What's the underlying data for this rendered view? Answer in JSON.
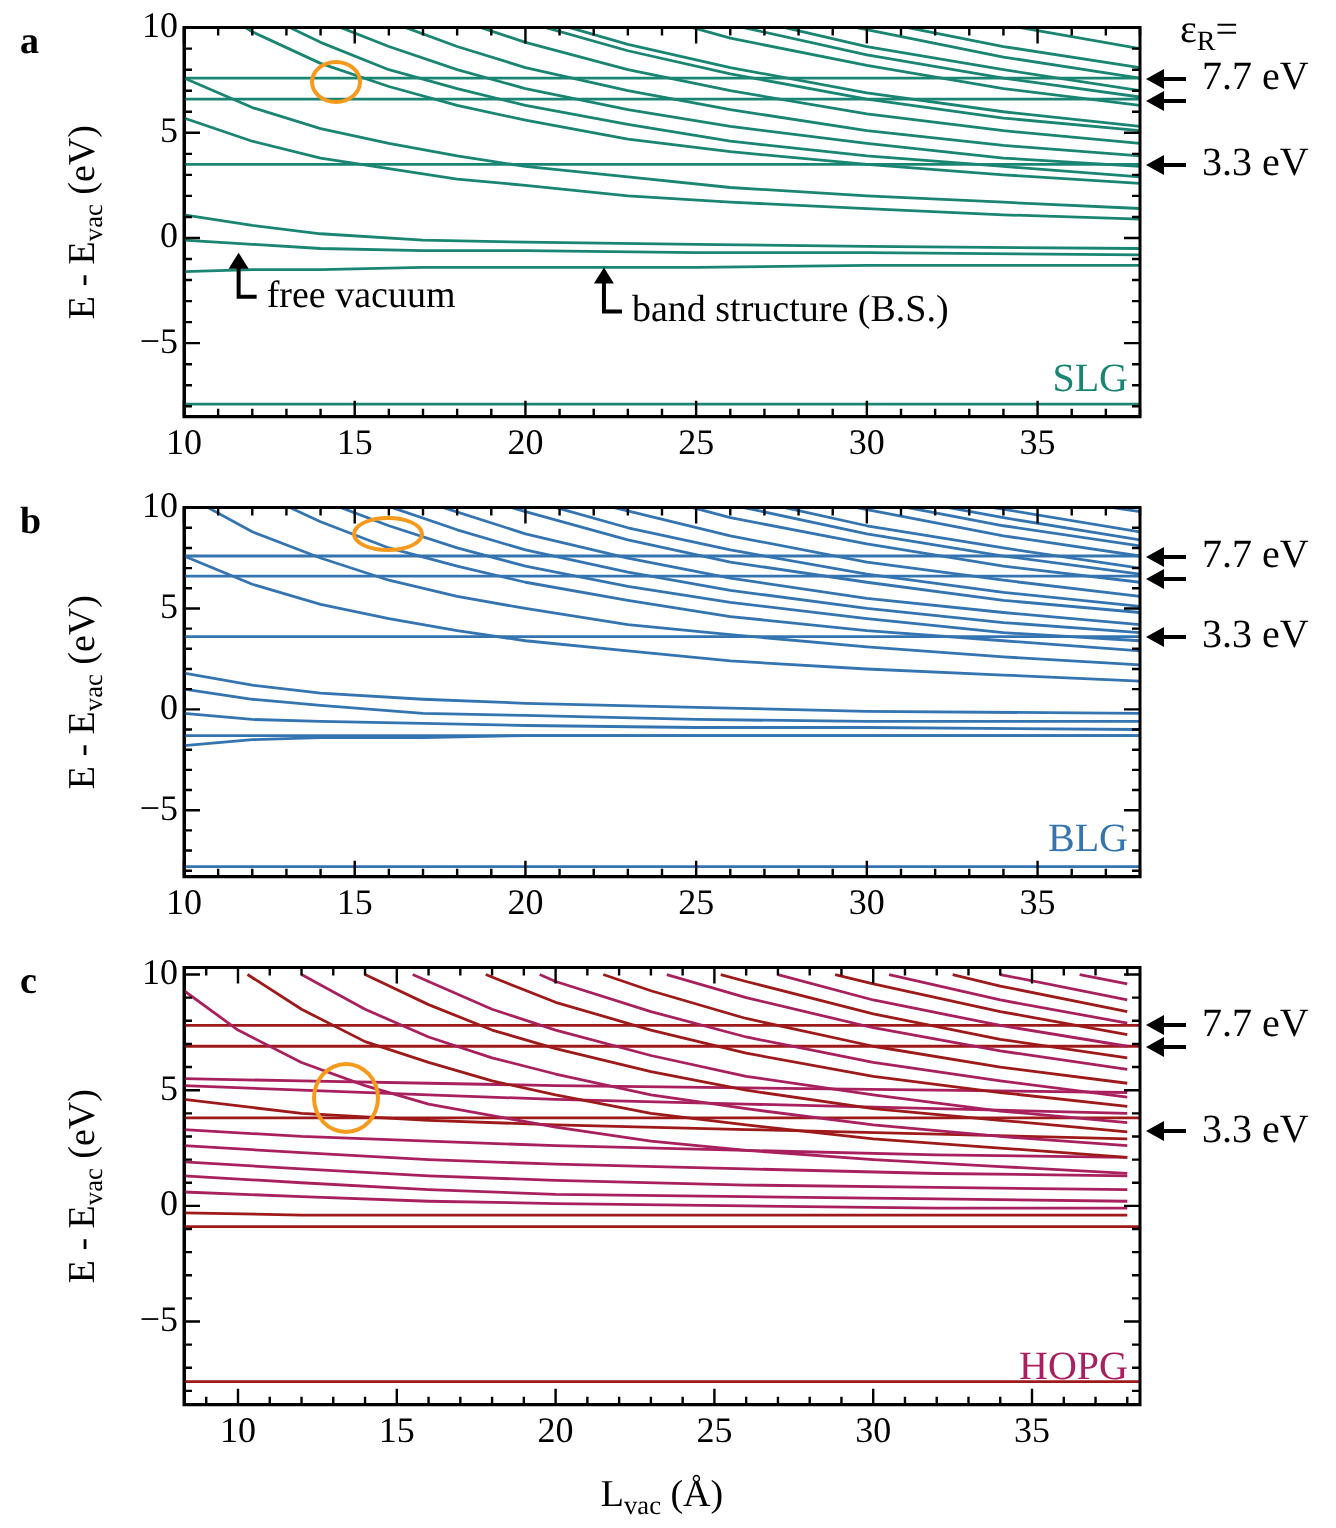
{
  "chart_data": [
    {
      "type": "line",
      "ylabel": "E - E$_{vac}$ (eV)",
      "xlim": [
        10,
        38
      ],
      "ylim": [
        -8.5,
        10
      ],
      "xticks": [
        10,
        {
          "value": 11,
          "label": null
        },
        {
          "value": 12,
          "label": null
        },
        {
          "value": 13,
          "label": null
        },
        {
          "value": 14,
          "label": null
        },
        15,
        {
          "value": 16,
          "label": null
        },
        {
          "value": 17,
          "label": null
        },
        {
          "value": 18,
          "label": null
        },
        {
          "value": 19,
          "label": null
        },
        20,
        {
          "value": 21,
          "label": null
        },
        {
          "value": 22,
          "label": null
        },
        {
          "value": 23,
          "label": null
        },
        {
          "value": 24,
          "label": null
        },
        25,
        {
          "value": 26,
          "label": null
        },
        {
          "value": 27,
          "label": null
        },
        {
          "value": 28,
          "label": null
        },
        {
          "value": 29,
          "label": null
        },
        30,
        {
          "value": 31,
          "label": null
        },
        {
          "value": 32,
          "label": null
        },
        {
          "value": 33,
          "label": null
        },
        {
          "value": 34,
          "label": null
        },
        35,
        {
          "value": 36,
          "label": null
        },
        {
          "value": 37,
          "label": null
        },
        {
          "value": 38,
          "label": null
        }
      ],
      "yticks": [
        {
          "value": -8,
          "label": null
        },
        {
          "value": -7,
          "label": null
        },
        {
          "value": -6,
          "label": null
        },
        -5,
        {
          "value": -4,
          "label": null
        },
        {
          "value": -3,
          "label": null
        },
        {
          "value": -2,
          "label": null
        },
        {
          "value": -1,
          "label": null
        },
        0,
        {
          "value": 1,
          "label": null
        },
        {
          "value": 2,
          "label": null
        },
        {
          "value": 3,
          "label": null
        },
        {
          "value": 4,
          "label": null
        },
        5,
        {
          "value": 6,
          "label": null
        },
        {
          "value": 7,
          "label": null
        },
        {
          "value": 8,
          "label": null
        },
        {
          "value": 9,
          "label": null
        },
        10
      ],
      "grid": false,
      "legend": false,
      "marker": "none",
      "line_style": "solid",
      "annotations": [
        "a",
        "ε$_{R}$=",
        "SLG",
        {
          "text": "7.7 eV",
          "x": 38,
          "y": 7.6
        },
        {
          "text": "3.3 eV",
          "x": 38,
          "y": 3.5
        },
        {
          "text": "free vacuum",
          "x": 11.6,
          "y": -0.7
        },
        {
          "text": "band structure (B.S.)",
          "x": 22.3,
          "y": -1.4
        }
      ],
      "series": [
        {
          "color": "#1a8573",
          "x": [
            10,
            38
          ],
          "values": [
            7.6,
            7.6
          ]
        },
        {
          "color": "#1a8573",
          "x": [
            10,
            38
          ],
          "values": [
            6.6,
            6.6
          ]
        },
        {
          "color": "#1a8573",
          "x": [
            10,
            38
          ],
          "values": [
            3.5,
            3.5
          ]
        },
        {
          "color": "#1a8573",
          "x": [
            10,
            38
          ],
          "values": [
            -7.9,
            -7.9
          ]
        },
        {
          "color": "#1a8573",
          "x": [
            10,
            12,
            14,
            16,
            18,
            20,
            23,
            26,
            30,
            34,
            38
          ],
          "values": [
            7.6,
            6.2,
            5.2,
            4.5,
            3.9,
            3.4,
            2.9,
            2.4,
            2.0,
            1.7,
            1.4
          ]
        },
        {
          "color": "#1a8573",
          "x": [
            10,
            12,
            14,
            16,
            18,
            20,
            23,
            26,
            30,
            34,
            38
          ],
          "values": [
            5.7,
            4.6,
            3.8,
            3.3,
            2.8,
            2.5,
            2.0,
            1.7,
            1.4,
            1.1,
            0.9
          ]
        },
        {
          "color": "#1a8573",
          "x": [
            11.8,
            12,
            14,
            16,
            18,
            20,
            23,
            26,
            30,
            34,
            38
          ],
          "values": [
            10,
            9.8,
            8.3,
            7.2,
            6.3,
            5.6,
            4.7,
            4.1,
            3.5,
            3.0,
            2.6
          ]
        },
        {
          "color": "#1a8573",
          "x": [
            13.1,
            14,
            16,
            18,
            20,
            23,
            26,
            30,
            34,
            38
          ],
          "values": [
            10,
            9.3,
            8.0,
            7.1,
            6.3,
            5.4,
            4.6,
            3.9,
            3.4,
            2.9
          ]
        },
        {
          "color": "#1a8573",
          "x": [
            14.6,
            16,
            18,
            20,
            23,
            26,
            30,
            34,
            38
          ],
          "values": [
            10,
            9.1,
            8.0,
            7.1,
            6.1,
            5.3,
            4.5,
            3.8,
            3.4
          ]
        },
        {
          "color": "#1a8573",
          "x": [
            16.5,
            18,
            20,
            23,
            26,
            30,
            34,
            38
          ],
          "values": [
            10,
            9.1,
            8.1,
            7.0,
            6.1,
            5.1,
            4.4,
            3.9
          ]
        },
        {
          "color": "#1a8573",
          "x": [
            18.7,
            20,
            23,
            26,
            30,
            34,
            38
          ],
          "values": [
            10,
            9.3,
            8.0,
            7.0,
            5.9,
            5.1,
            4.5
          ]
        },
        {
          "color": "#1a8573",
          "x": [
            20.6,
            23,
            26,
            30,
            34,
            38
          ],
          "values": [
            10,
            8.9,
            7.8,
            6.6,
            5.7,
            5.1
          ]
        },
        {
          "color": "#1a8573",
          "x": [
            21.3,
            23,
            26,
            30,
            34,
            38
          ],
          "values": [
            10,
            9.2,
            8.1,
            6.9,
            6.0,
            5.3
          ]
        },
        {
          "color": "#1a8573",
          "x": [
            24.9,
            26,
            30,
            34,
            38
          ],
          "values": [
            10,
            9.5,
            8.2,
            7.1,
            6.3
          ]
        },
        {
          "color": "#1a8573",
          "x": [
            26.4,
            30,
            34,
            38
          ],
          "values": [
            10,
            8.7,
            7.6,
            6.7
          ]
        },
        {
          "color": "#1a8573",
          "x": [
            27.6,
            30,
            34,
            38
          ],
          "values": [
            10,
            9.1,
            8.0,
            7.0
          ]
        },
        {
          "color": "#1a8573",
          "x": [
            29.7,
            34,
            38
          ],
          "values": [
            10,
            8.6,
            7.6
          ]
        },
        {
          "color": "#1a8573",
          "x": [
            31.2,
            34,
            38
          ],
          "values": [
            10,
            9.1,
            8.1
          ]
        },
        {
          "color": "#1a8573",
          "x": [
            34.5,
            38
          ],
          "values": [
            10,
            9.0
          ]
        },
        {
          "color": "#1a8573",
          "x": [
            10,
            12,
            14,
            17,
            20,
            25,
            30,
            38
          ],
          "values": [
            1.1,
            0.6,
            0.2,
            -0.1,
            -0.2,
            -0.3,
            -0.4,
            -0.5
          ]
        },
        {
          "color": "#1a8573",
          "x": [
            10,
            12,
            14,
            17,
            20,
            25,
            30,
            38
          ],
          "values": [
            -0.1,
            -0.3,
            -0.5,
            -0.6,
            -0.6,
            -0.7,
            -0.7,
            -0.8
          ]
        },
        {
          "color": "#1a8573",
          "x": [
            10,
            12,
            14,
            17,
            20,
            25,
            30,
            38
          ],
          "values": [
            -1.6,
            -1.5,
            -1.5,
            -1.4,
            -1.4,
            -1.4,
            -1.3,
            -1.3
          ]
        }
      ]
    },
    {
      "type": "line",
      "ylabel": "E - E$_{vac}$ (eV)",
      "xlim": [
        10,
        38
      ],
      "ylim": [
        -8.3,
        10
      ],
      "xticks": [
        10,
        {
          "value": 11,
          "label": null
        },
        {
          "value": 12,
          "label": null
        },
        {
          "value": 13,
          "label": null
        },
        {
          "value": 14,
          "label": null
        },
        15,
        {
          "value": 16,
          "label": null
        },
        {
          "value": 17,
          "label": null
        },
        {
          "value": 18,
          "label": null
        },
        {
          "value": 19,
          "label": null
        },
        20,
        {
          "value": 21,
          "label": null
        },
        {
          "value": 22,
          "label": null
        },
        {
          "value": 23,
          "label": null
        },
        {
          "value": 24,
          "label": null
        },
        25,
        {
          "value": 26,
          "label": null
        },
        {
          "value": 27,
          "label": null
        },
        {
          "value": 28,
          "label": null
        },
        {
          "value": 29,
          "label": null
        },
        30,
        {
          "value": 31,
          "label": null
        },
        {
          "value": 32,
          "label": null
        },
        {
          "value": 33,
          "label": null
        },
        {
          "value": 34,
          "label": null
        },
        35,
        {
          "value": 36,
          "label": null
        },
        {
          "value": 37,
          "label": null
        },
        {
          "value": 38,
          "label": null
        }
      ],
      "yticks": [
        {
          "value": -8,
          "label": null
        },
        {
          "value": -7,
          "label": null
        },
        {
          "value": -6,
          "label": null
        },
        -5,
        {
          "value": -4,
          "label": null
        },
        {
          "value": -3,
          "label": null
        },
        {
          "value": -2,
          "label": null
        },
        {
          "value": -1,
          "label": null
        },
        0,
        {
          "value": 1,
          "label": null
        },
        {
          "value": 2,
          "label": null
        },
        {
          "value": 3,
          "label": null
        },
        {
          "value": 4,
          "label": null
        },
        5,
        {
          "value": 6,
          "label": null
        },
        {
          "value": 7,
          "label": null
        },
        {
          "value": 8,
          "label": null
        },
        {
          "value": 9,
          "label": null
        },
        10
      ],
      "grid": false,
      "legend": false,
      "marker": "none",
      "line_style": "solid",
      "annotations": [
        "b",
        "BLG",
        {
          "text": "7.7 eV",
          "x": 38,
          "y": 7.6
        },
        {
          "text": "3.3 eV",
          "x": 38,
          "y": 3.6
        }
      ],
      "series": [
        {
          "color": "#3474b0",
          "x": [
            10,
            38
          ],
          "values": [
            7.6,
            7.6
          ]
        },
        {
          "color": "#3474b0",
          "x": [
            10,
            38
          ],
          "values": [
            6.6,
            6.6
          ]
        },
        {
          "color": "#3474b0",
          "x": [
            10,
            38
          ],
          "values": [
            3.6,
            3.6
          ]
        },
        {
          "color": "#3474b0",
          "x": [
            10,
            38
          ],
          "values": [
            -1.3,
            -1.3
          ]
        },
        {
          "color": "#3474b0",
          "x": [
            10,
            38
          ],
          "values": [
            -7.8,
            -7.8
          ]
        },
        {
          "color": "#3474b0",
          "x": [
            10,
            12,
            14,
            16,
            18,
            20,
            23,
            26,
            30,
            34,
            38
          ],
          "values": [
            7.6,
            6.2,
            5.2,
            4.5,
            3.9,
            3.4,
            2.9,
            2.4,
            2.0,
            1.7,
            1.4
          ]
        },
        {
          "color": "#3474b0",
          "x": [
            10.7,
            12,
            14,
            16,
            18,
            20,
            23,
            26,
            30,
            34,
            38
          ],
          "values": [
            10,
            8.8,
            7.5,
            6.4,
            5.6,
            5.0,
            4.2,
            3.7,
            3.1,
            2.6,
            2.2
          ]
        },
        {
          "color": "#3474b0",
          "x": [
            13.1,
            14,
            16,
            18,
            20,
            23,
            26,
            30,
            34,
            38
          ],
          "values": [
            10,
            9.3,
            8.0,
            7.1,
            6.3,
            5.4,
            4.6,
            3.9,
            3.4,
            2.9
          ]
        },
        {
          "color": "#3474b0",
          "x": [
            14.6,
            16,
            18,
            20,
            23,
            26,
            30,
            34,
            38
          ],
          "values": [
            10,
            9.1,
            8.0,
            7.1,
            6.1,
            5.3,
            4.5,
            3.8,
            3.4
          ]
        },
        {
          "color": "#3474b0",
          "x": [
            16.1,
            18,
            20,
            23,
            26,
            30,
            34,
            38
          ],
          "values": [
            10,
            8.9,
            7.9,
            6.8,
            5.9,
            5.0,
            4.3,
            3.8
          ]
        },
        {
          "color": "#3474b0",
          "x": [
            17.6,
            20,
            23,
            26,
            30,
            34,
            38
          ],
          "values": [
            10,
            8.7,
            7.5,
            6.5,
            5.5,
            4.8,
            4.2
          ]
        },
        {
          "color": "#3474b0",
          "x": [
            19.6,
            20,
            23,
            26,
            30,
            34,
            38
          ],
          "values": [
            10,
            9.8,
            8.4,
            7.3,
            6.3,
            5.4,
            4.8
          ]
        },
        {
          "color": "#3474b0",
          "x": [
            20.9,
            23,
            26,
            30,
            34,
            38
          ],
          "values": [
            10,
            9.0,
            7.9,
            6.7,
            5.8,
            5.1
          ]
        },
        {
          "color": "#3474b0",
          "x": [
            22.6,
            26,
            30,
            34,
            38
          ],
          "values": [
            10,
            8.6,
            7.3,
            6.4,
            5.6
          ]
        },
        {
          "color": "#3474b0",
          "x": [
            24.9,
            26,
            30,
            34,
            38
          ],
          "values": [
            10,
            9.5,
            8.2,
            7.1,
            6.3
          ]
        },
        {
          "color": "#3474b0",
          "x": [
            26.4,
            30,
            34,
            38
          ],
          "values": [
            10,
            8.7,
            7.6,
            6.7
          ]
        },
        {
          "color": "#3474b0",
          "x": [
            27.6,
            30,
            34,
            38
          ],
          "values": [
            10,
            9.1,
            8.0,
            7.0
          ]
        },
        {
          "color": "#3474b0",
          "x": [
            29.7,
            34,
            38
          ],
          "values": [
            10,
            8.6,
            7.6
          ]
        },
        {
          "color": "#3474b0",
          "x": [
            31.2,
            34,
            38
          ],
          "values": [
            10,
            9.1,
            8.1
          ]
        },
        {
          "color": "#3474b0",
          "x": [
            32.4,
            34,
            38
          ],
          "values": [
            10,
            9.5,
            8.4
          ]
        },
        {
          "color": "#3474b0",
          "x": [
            33.7,
            38
          ],
          "values": [
            10,
            8.8
          ]
        },
        {
          "color": "#3474b0",
          "x": [
            37.2,
            38
          ],
          "values": [
            10,
            9.8
          ]
        },
        {
          "color": "#3474b0",
          "x": [
            10,
            12,
            14,
            17,
            20,
            25,
            30,
            38
          ],
          "values": [
            1.8,
            1.2,
            0.8,
            0.5,
            0.3,
            0.1,
            -0.1,
            -0.2
          ]
        },
        {
          "color": "#3474b0",
          "x": [
            10,
            12,
            14,
            17,
            20,
            25,
            30,
            38
          ],
          "values": [
            1.0,
            0.5,
            0.2,
            -0.2,
            -0.3,
            -0.5,
            -0.6,
            -0.6
          ]
        },
        {
          "color": "#3474b0",
          "x": [
            10,
            12,
            14,
            17,
            20,
            25,
            30,
            38
          ],
          "values": [
            -0.2,
            -0.5,
            -0.6,
            -0.7,
            -0.8,
            -0.9,
            -0.9,
            -1.0
          ]
        },
        {
          "color": "#3474b0",
          "x": [
            10,
            12,
            14,
            17,
            20,
            25,
            30,
            38
          ],
          "values": [
            -1.8,
            -1.5,
            -1.4,
            -1.4,
            -1.3,
            -1.3,
            -1.3,
            -1.3
          ]
        }
      ]
    },
    {
      "type": "line",
      "xlabel": "L$_{vac}$ (Å)",
      "ylabel": "E - E$_{vac}$ (eV)",
      "xlim": [
        8.3,
        38.4
      ],
      "ylim": [
        -8.6,
        10.3
      ],
      "xticks": [
        {
          "value": 9,
          "label": null
        },
        10,
        {
          "value": 11,
          "label": null
        },
        {
          "value": 12,
          "label": null
        },
        {
          "value": 13,
          "label": null
        },
        {
          "value": 14,
          "label": null
        },
        15,
        {
          "value": 16,
          "label": null
        },
        {
          "value": 17,
          "label": null
        },
        {
          "value": 18,
          "label": null
        },
        {
          "value": 19,
          "label": null
        },
        20,
        {
          "value": 21,
          "label": null
        },
        {
          "value": 22,
          "label": null
        },
        {
          "value": 23,
          "label": null
        },
        {
          "value": 24,
          "label": null
        },
        25,
        {
          "value": 26,
          "label": null
        },
        {
          "value": 27,
          "label": null
        },
        {
          "value": 28,
          "label": null
        },
        {
          "value": 29,
          "label": null
        },
        30,
        {
          "value": 31,
          "label": null
        },
        {
          "value": 32,
          "label": null
        },
        {
          "value": 33,
          "label": null
        },
        {
          "value": 34,
          "label": null
        },
        35,
        {
          "value": 36,
          "label": null
        },
        {
          "value": 37,
          "label": null
        },
        {
          "value": 38,
          "label": null
        }
      ],
      "yticks": [
        {
          "value": -8,
          "label": null
        },
        {
          "value": -7,
          "label": null
        },
        {
          "value": -6,
          "label": null
        },
        -5,
        {
          "value": -4,
          "label": null
        },
        {
          "value": -3,
          "label": null
        },
        {
          "value": -2,
          "label": null
        },
        {
          "value": -1,
          "label": null
        },
        0,
        {
          "value": 1,
          "label": null
        },
        {
          "value": 2,
          "label": null
        },
        {
          "value": 3,
          "label": null
        },
        {
          "value": 4,
          "label": null
        },
        5,
        {
          "value": 6,
          "label": null
        },
        {
          "value": 7,
          "label": null
        },
        {
          "value": 8,
          "label": null
        },
        {
          "value": 9,
          "label": null
        },
        10
      ],
      "grid": false,
      "legend": false,
      "marker": "none",
      "line_style": "solid",
      "annotations": [
        "c",
        "HOPG",
        {
          "text": "7.7 eV",
          "x": 38.4,
          "y": 7.8
        },
        {
          "text": "3.3 eV",
          "x": 38,
          "y": 3.2
        }
      ],
      "series": [
        {
          "color": "#a8205e",
          "x": [
            8.3,
            10,
            12,
            14,
            16,
            18,
            20,
            23,
            26,
            30,
            34,
            38
          ],
          "values": [
            9.3,
            7.6,
            6.2,
            5.2,
            4.4,
            3.9,
            3.4,
            2.8,
            2.4,
            2.0,
            1.7,
            1.4
          ]
        },
        {
          "color": "#9e1a1a",
          "x": [
            10.3,
            12,
            14,
            16,
            18,
            20,
            23,
            26,
            30,
            34,
            38
          ],
          "values": [
            10,
            8.5,
            7.1,
            6.2,
            5.4,
            4.8,
            4.0,
            3.5,
            2.9,
            2.5,
            2.1
          ]
        },
        {
          "color": "#a8205e",
          "x": [
            12,
            14,
            16,
            18,
            20,
            23,
            26,
            30,
            34,
            38
          ],
          "values": [
            10,
            8.5,
            7.3,
            6.4,
            5.7,
            4.8,
            4.2,
            3.5,
            3.0,
            2.6
          ]
        },
        {
          "color": "#9e1a1a",
          "x": [
            14,
            16,
            18,
            20,
            23,
            26,
            30,
            34,
            38
          ],
          "values": [
            10,
            8.7,
            7.6,
            6.8,
            5.8,
            5.0,
            4.2,
            3.7,
            3.2
          ]
        },
        {
          "color": "#a8205e",
          "x": [
            15.5,
            16,
            18,
            20,
            23,
            26,
            30,
            34,
            38
          ],
          "values": [
            10,
            9.7,
            8.5,
            7.6,
            6.5,
            5.6,
            4.8,
            4.1,
            3.6
          ]
        },
        {
          "color": "#9e1a1a",
          "x": [
            17.8,
            20,
            23,
            26,
            30,
            34,
            38
          ],
          "values": [
            10,
            8.8,
            7.6,
            6.6,
            5.6,
            4.9,
            4.3
          ]
        },
        {
          "color": "#a8205e",
          "x": [
            19.5,
            20,
            23,
            26,
            30,
            34,
            38
          ],
          "values": [
            10,
            9.7,
            8.4,
            7.3,
            6.2,
            5.4,
            4.7
          ]
        },
        {
          "color": "#9e1a1a",
          "x": [
            21.5,
            23,
            26,
            30,
            34,
            38
          ],
          "values": [
            10,
            9.3,
            8.1,
            6.9,
            6.0,
            5.3
          ]
        },
        {
          "color": "#a8205e",
          "x": [
            23.5,
            26,
            30,
            34,
            38
          ],
          "values": [
            10,
            9.0,
            7.7,
            6.7,
            5.9
          ]
        },
        {
          "color": "#9e1a1a",
          "x": [
            25.2,
            26,
            30,
            34,
            38
          ],
          "values": [
            10,
            9.7,
            8.3,
            7.2,
            6.4
          ]
        },
        {
          "color": "#a8205e",
          "x": [
            27,
            30,
            34,
            38
          ],
          "values": [
            10,
            8.9,
            7.8,
            6.9
          ]
        },
        {
          "color": "#9e1a1a",
          "x": [
            28.8,
            30,
            34,
            38
          ],
          "values": [
            10,
            9.6,
            8.4,
            7.4
          ]
        },
        {
          "color": "#a8205e",
          "x": [
            30.5,
            34,
            38
          ],
          "values": [
            10,
            8.9,
            7.9
          ]
        },
        {
          "color": "#9e1a1a",
          "x": [
            32.5,
            34,
            38
          ],
          "values": [
            10,
            9.5,
            8.4
          ]
        },
        {
          "color": "#a8205e",
          "x": [
            34,
            38
          ],
          "values": [
            10,
            8.9
          ]
        },
        {
          "color": "#a8205e",
          "x": [
            36.5,
            38
          ],
          "values": [
            10,
            9.6
          ]
        },
        {
          "color": "#a8205e",
          "x": [
            8.3,
            12,
            16,
            20,
            26,
            32,
            38
          ],
          "values": [
            5.5,
            5.4,
            5.3,
            5.2,
            5.1,
            5.0,
            4.9
          ]
        },
        {
          "color": "#a8205e",
          "x": [
            8.3,
            12,
            16,
            20,
            26,
            32,
            38
          ],
          "values": [
            5.2,
            5.0,
            4.8,
            4.6,
            4.4,
            4.2,
            4.0
          ]
        },
        {
          "color": "#9e1a1a",
          "x": [
            8.3,
            12,
            16,
            20,
            26,
            32,
            38
          ],
          "values": [
            4.6,
            4.0,
            3.7,
            3.5,
            3.3,
            3.1,
            2.9
          ]
        },
        {
          "color": "#a8205e",
          "x": [
            8.3,
            12,
            16,
            20,
            26,
            32,
            38
          ],
          "values": [
            3.3,
            3.0,
            2.8,
            2.6,
            2.4,
            2.2,
            2.1
          ]
        },
        {
          "color": "#a8205e",
          "x": [
            8.3,
            12,
            16,
            20,
            26,
            32,
            38
          ],
          "values": [
            2.6,
            2.3,
            2.0,
            1.8,
            1.6,
            1.4,
            1.3
          ]
        },
        {
          "color": "#a8205e",
          "x": [
            8.3,
            12,
            16,
            20,
            26,
            32,
            38
          ],
          "values": [
            1.9,
            1.6,
            1.3,
            1.1,
            0.9,
            0.8,
            0.7
          ]
        },
        {
          "color": "#a8205e",
          "x": [
            8.3,
            12,
            16,
            20,
            26,
            32,
            38
          ],
          "values": [
            1.3,
            1.0,
            0.7,
            0.5,
            0.4,
            0.3,
            0.2
          ]
        },
        {
          "color": "#a8205e",
          "x": [
            8.3,
            12,
            16,
            20,
            26,
            32,
            38
          ],
          "values": [
            0.6,
            0.4,
            0.2,
            0.1,
            0.0,
            -0.1,
            -0.1
          ]
        },
        {
          "color": "#9e1a1a",
          "x": [
            8.3,
            12,
            16,
            20,
            26,
            32,
            38
          ],
          "values": [
            -0.3,
            -0.4,
            -0.4,
            -0.4,
            -0.4,
            -0.4,
            -0.4
          ]
        },
        {
          "color": "#9e1a1a",
          "x": [
            8.3,
            38.4
          ],
          "values": [
            7.8,
            7.8
          ]
        },
        {
          "color": "#9e1a1a",
          "x": [
            8.3,
            38.4
          ],
          "values": [
            6.9,
            6.9
          ]
        },
        {
          "color": "#9e1a1a",
          "x": [
            8.3,
            38.4
          ],
          "values": [
            3.8,
            3.8
          ]
        },
        {
          "color": "#9e1a1a",
          "x": [
            8.3,
            38.4
          ],
          "values": [
            -0.9,
            -0.9
          ]
        },
        {
          "color": "#9e1a1a",
          "x": [
            8.3,
            38.4
          ],
          "values": [
            -7.6,
            -7.6
          ]
        }
      ]
    }
  ]
}
